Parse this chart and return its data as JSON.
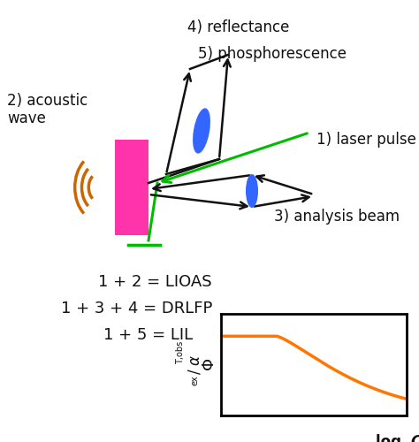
{
  "bg_color": "#ffffff",
  "pink_color": "#FF33AA",
  "acoustic_color": "#CC6600",
  "laser_color": "#00BB00",
  "arrow_color": "#111111",
  "blue_lens_color": "#3366FF",
  "orange_curve_color": "#FF7700",
  "text_color": "#111111",
  "label_1": "1) laser pulse",
  "label_2": "2) acoustic",
  "label_2b": "wave",
  "label_3": "3) analysis beam",
  "label_4": "4) reflectance",
  "label_5": "5) phosphorescence",
  "eq1": "1 + 2 = LIOAS",
  "eq2": "1 + 3 + 4 = DRLFP",
  "eq3": "1 + 5 = LIL",
  "xlabel": "log C"
}
